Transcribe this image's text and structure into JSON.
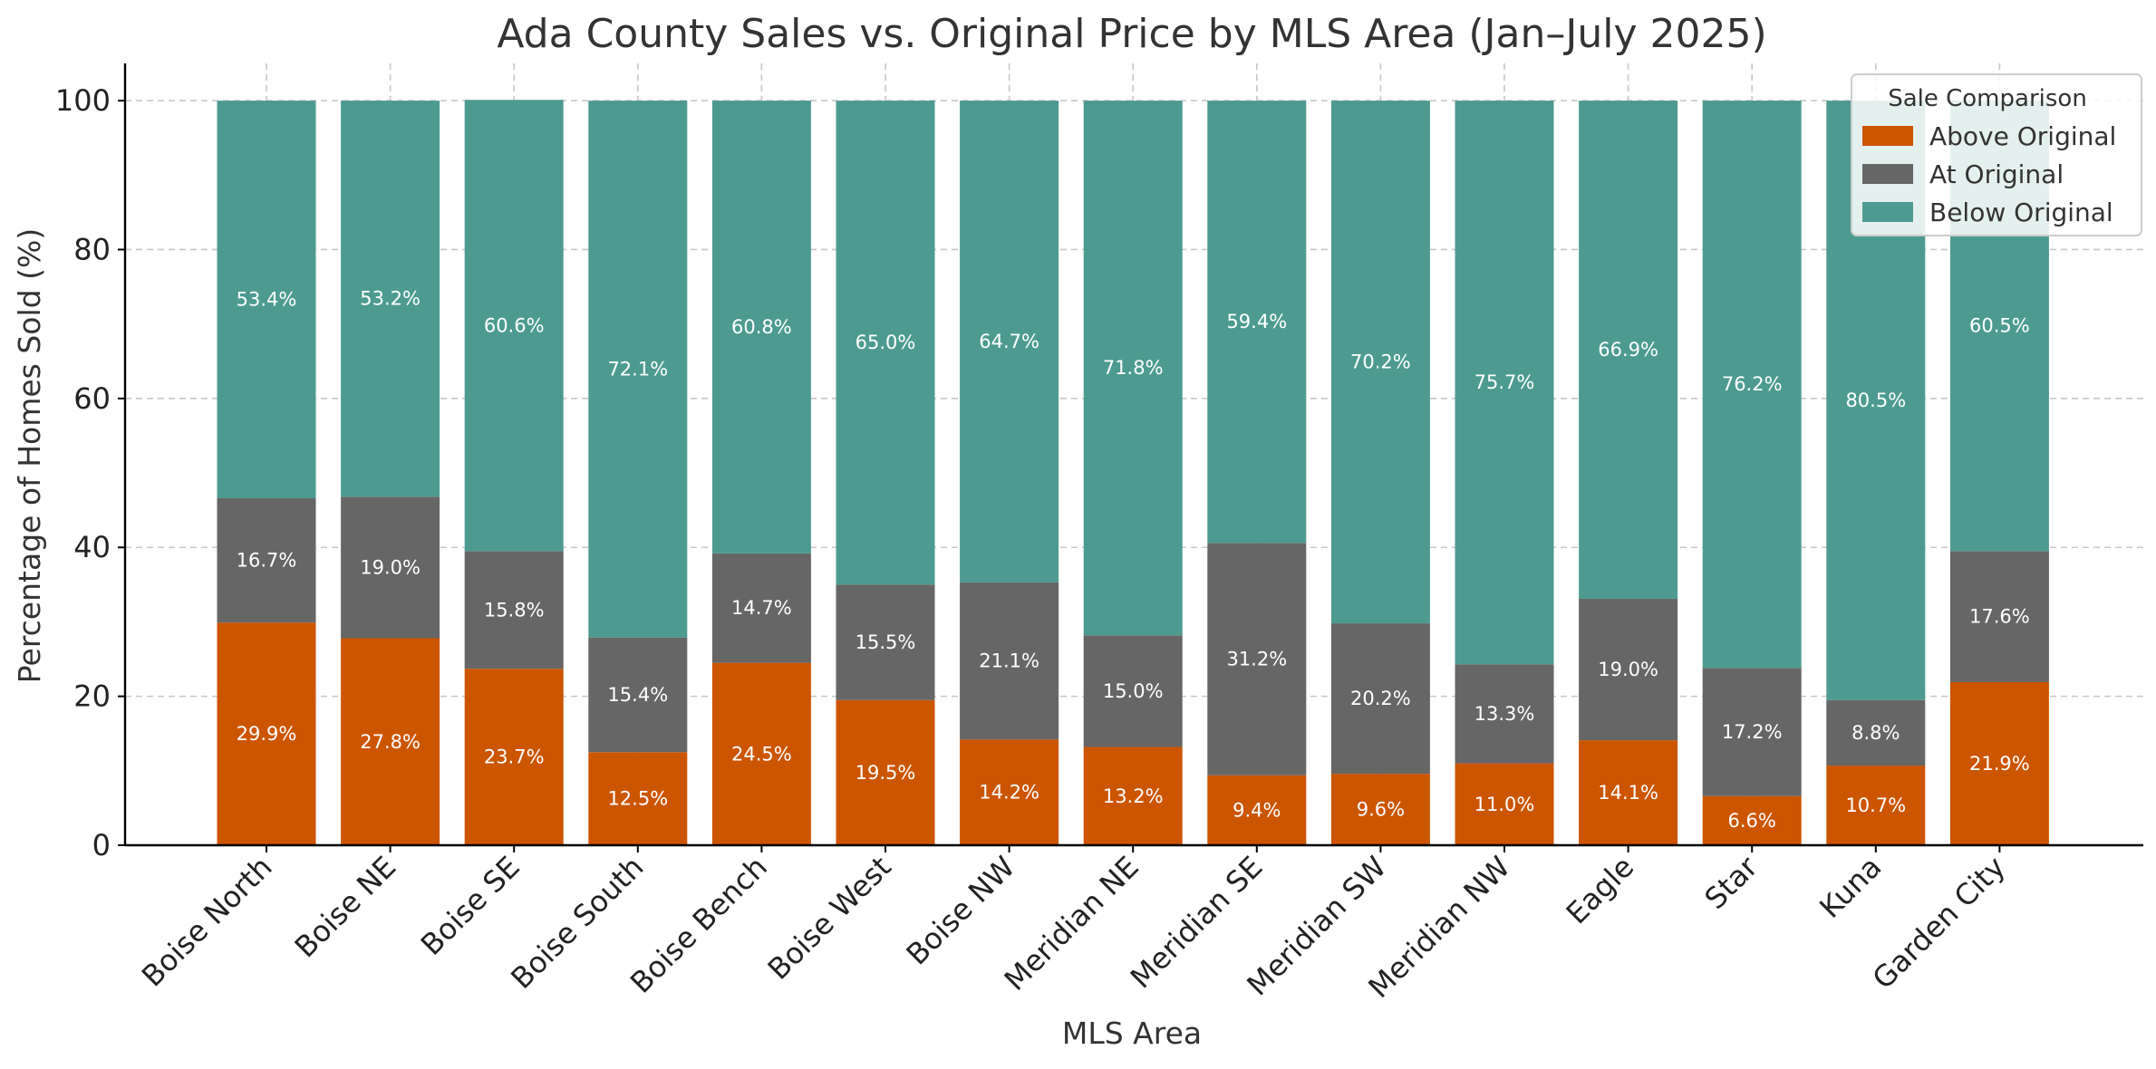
{
  "chart_data": {
    "type": "bar",
    "stacked": true,
    "title": "Ada County Sales vs. Original Price by MLS Area (Jan–July 2025)",
    "xlabel": "MLS Area",
    "ylabel": "Percentage of Homes Sold (%)",
    "ylim": [
      0,
      105
    ],
    "yticks": [
      0,
      20,
      40,
      60,
      80,
      100
    ],
    "grid": true,
    "legend": {
      "title": "Sale Comparison",
      "position": "top-right"
    },
    "categories": [
      "Boise North",
      "Boise NE",
      "Boise SE",
      "Boise South",
      "Boise Bench",
      "Boise West",
      "Boise NW",
      "Meridian NE",
      "Meridian SE",
      "Meridian SW",
      "Meridian NW",
      "Eagle",
      "Star",
      "Kuna",
      "Garden City"
    ],
    "series": [
      {
        "name": "Above Original",
        "color": "#cc5500",
        "values": [
          29.9,
          27.8,
          23.7,
          12.5,
          24.5,
          19.5,
          14.2,
          13.2,
          9.4,
          9.6,
          11.0,
          14.1,
          6.6,
          10.7,
          21.9
        ]
      },
      {
        "name": "At Original",
        "color": "#666666",
        "values": [
          16.7,
          19.0,
          15.8,
          15.4,
          14.7,
          15.5,
          21.1,
          15.0,
          31.2,
          20.2,
          13.3,
          19.0,
          17.2,
          8.8,
          17.6
        ]
      },
      {
        "name": "Below Original",
        "color": "#4d9b90",
        "values": [
          53.4,
          53.2,
          60.6,
          72.1,
          60.8,
          65.0,
          64.7,
          71.8,
          59.4,
          70.2,
          75.7,
          66.9,
          76.2,
          80.5,
          60.5
        ]
      }
    ]
  }
}
